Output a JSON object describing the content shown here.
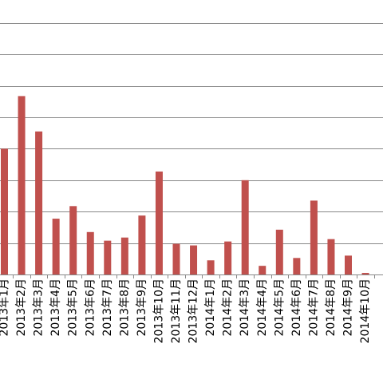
{
  "chart_data": {
    "type": "bar",
    "categories": [
      "2013年1月",
      "2013年2月",
      "2013年3月",
      "2013年4月",
      "2013年5月",
      "2013年6月",
      "2013年7月",
      "2013年8月",
      "2013年9月",
      "2013年10月",
      "2013年11月",
      "2013年12月",
      "2014年1月",
      "2014年2月",
      "2014年3月",
      "2014年4月",
      "2014年5月",
      "2014年6月",
      "2014年7月",
      "2014年8月",
      "2014年9月",
      "2014年10月"
    ],
    "values": [
      160,
      227,
      182,
      71,
      87,
      54,
      43,
      47,
      75,
      131,
      39,
      37,
      18,
      42,
      120,
      11,
      57,
      21,
      94,
      45,
      24,
      2
    ],
    "ylim": [
      0,
      320
    ],
    "y_gridlines": [
      0,
      40,
      80,
      120,
      160,
      200,
      240,
      280,
      320
    ],
    "grid": true,
    "bar_color": "#c0504d",
    "grid_color": "#888888",
    "axis_color": "#888888",
    "label_color": "#000000"
  }
}
